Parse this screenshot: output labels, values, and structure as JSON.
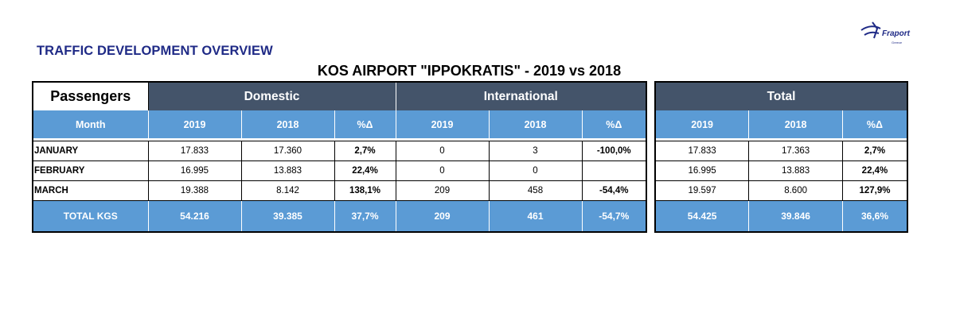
{
  "report_title": "TRAFFIC DEVELOPMENT OVERVIEW",
  "subtitle": "KOS AIRPORT \"IPPOKRATIS\" - 2019 vs 2018",
  "logo": {
    "word": "Fraport",
    "sub": "Greece",
    "icon": "fraport-plane-logo"
  },
  "table": {
    "label": "Passengers",
    "groups": {
      "domestic": "Domestic",
      "international": "International",
      "total": "Total"
    },
    "month_header": "Month",
    "col_headers": [
      "2019",
      "2018",
      "%Δ"
    ],
    "rows": [
      {
        "month": "JANUARY",
        "dom": [
          "17.833",
          "17.360",
          "2,7%"
        ],
        "intl": [
          "0",
          "3",
          "-100,0%"
        ],
        "tot": [
          "17.833",
          "17.363",
          "2,7%"
        ]
      },
      {
        "month": "FEBRUARY",
        "dom": [
          "16.995",
          "13.883",
          "22,4%"
        ],
        "intl": [
          "0",
          "0",
          ""
        ],
        "tot": [
          "16.995",
          "13.883",
          "22,4%"
        ]
      },
      {
        "month": "MARCH",
        "dom": [
          "19.388",
          "8.142",
          "138,1%"
        ],
        "intl": [
          "209",
          "458",
          "-54,4%"
        ],
        "tot": [
          "19.597",
          "8.600",
          "127,9%"
        ]
      }
    ],
    "total": {
      "label": "TOTAL KGS",
      "dom": [
        "54.216",
        "39.385",
        "37,7%"
      ],
      "intl": [
        "209",
        "461",
        "-54,7%"
      ],
      "tot": [
        "54.425",
        "39.846",
        "36,6%"
      ]
    }
  }
}
